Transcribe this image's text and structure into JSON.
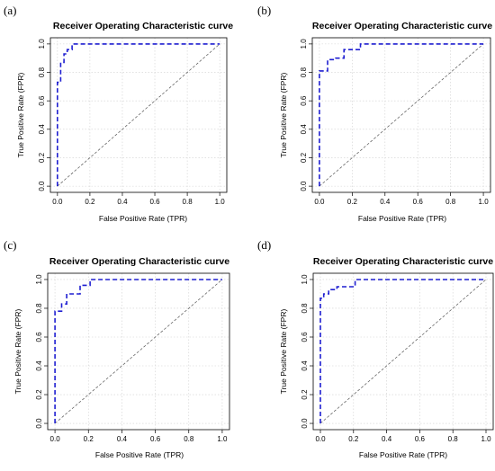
{
  "chart_data": [
    {
      "panel": "(a)",
      "type": "line",
      "title": "Receiver Operating Characteristic curve",
      "xlabel": "False Positive Rate (TPR)",
      "ylabel": "True Positive Rate (FPR)",
      "xlim": [
        0,
        1
      ],
      "ylim": [
        0,
        1
      ],
      "xticks": [
        "0.0",
        "0.2",
        "0.4",
        "0.6",
        "0.8",
        "1.0"
      ],
      "yticks": [
        "0.0",
        "0.2",
        "0.4",
        "0.6",
        "0.8",
        "1.0"
      ],
      "grid": true,
      "diagonal": true,
      "series": [
        {
          "color": "#1f1fd1",
          "x": [
            0.0,
            0.0,
            0.02,
            0.02,
            0.04,
            0.04,
            0.06,
            0.06,
            0.09,
            0.09,
            1.0
          ],
          "y": [
            0.0,
            0.73,
            0.73,
            0.87,
            0.87,
            0.93,
            0.93,
            0.96,
            0.96,
            1.0,
            1.0
          ]
        }
      ]
    },
    {
      "panel": "(b)",
      "type": "line",
      "title": "Receiver Operating Characteristic curve",
      "xlabel": "False Positive Rate (TPR)",
      "ylabel": "True Positive Rate (FPR)",
      "xlim": [
        0,
        1
      ],
      "ylim": [
        0,
        1
      ],
      "xticks": [
        "0.0",
        "0.2",
        "0.4",
        "0.6",
        "0.8",
        "1.0"
      ],
      "yticks": [
        "0.0",
        "0.2",
        "0.4",
        "0.6",
        "0.8",
        "1.0"
      ],
      "grid": true,
      "diagonal": true,
      "series": [
        {
          "color": "#1f1fd1",
          "x": [
            0.0,
            0.0,
            0.05,
            0.05,
            0.1,
            0.1,
            0.15,
            0.15,
            0.25,
            0.25,
            1.0
          ],
          "y": [
            0.0,
            0.81,
            0.81,
            0.89,
            0.89,
            0.9,
            0.9,
            0.96,
            0.96,
            1.0,
            1.0
          ]
        }
      ]
    },
    {
      "panel": "(c)",
      "type": "line",
      "title": "Receiver Operating Characteristic curve",
      "xlabel": "False Positive Rate (TPR)",
      "ylabel": "True Positive Rate (FPR)",
      "xlim": [
        0,
        1
      ],
      "ylim": [
        0,
        1
      ],
      "xticks": [
        "0.0",
        "0.2",
        "0.4",
        "0.6",
        "0.8",
        "1.0"
      ],
      "yticks": [
        "0.0",
        "0.2",
        "0.4",
        "0.6",
        "0.8",
        "1.0"
      ],
      "grid": true,
      "diagonal": true,
      "series": [
        {
          "color": "#1f1fd1",
          "x": [
            0.0,
            0.0,
            0.04,
            0.04,
            0.07,
            0.07,
            0.15,
            0.15,
            0.21,
            0.21,
            1.0
          ],
          "y": [
            0.0,
            0.78,
            0.78,
            0.83,
            0.83,
            0.9,
            0.9,
            0.96,
            0.96,
            1.0,
            1.0
          ]
        }
      ]
    },
    {
      "panel": "(d)",
      "type": "line",
      "title": "Receiver Operating Characteristic curve",
      "xlabel": "False Positive Rate (TPR)",
      "ylabel": "True Positive Rate (FPR)",
      "xlim": [
        0,
        1
      ],
      "ylim": [
        0,
        1
      ],
      "xticks": [
        "0.0",
        "0.2",
        "0.4",
        "0.6",
        "0.8",
        "1.0"
      ],
      "yticks": [
        "0.0",
        "0.2",
        "0.4",
        "0.6",
        "0.8",
        "1.0"
      ],
      "grid": true,
      "diagonal": true,
      "series": [
        {
          "color": "#1f1fd1",
          "x": [
            0.0,
            0.0,
            0.02,
            0.02,
            0.05,
            0.05,
            0.1,
            0.1,
            0.21,
            0.21,
            1.0
          ],
          "y": [
            0.0,
            0.87,
            0.87,
            0.9,
            0.9,
            0.93,
            0.93,
            0.95,
            0.95,
            1.0,
            1.0
          ]
        }
      ]
    }
  ]
}
